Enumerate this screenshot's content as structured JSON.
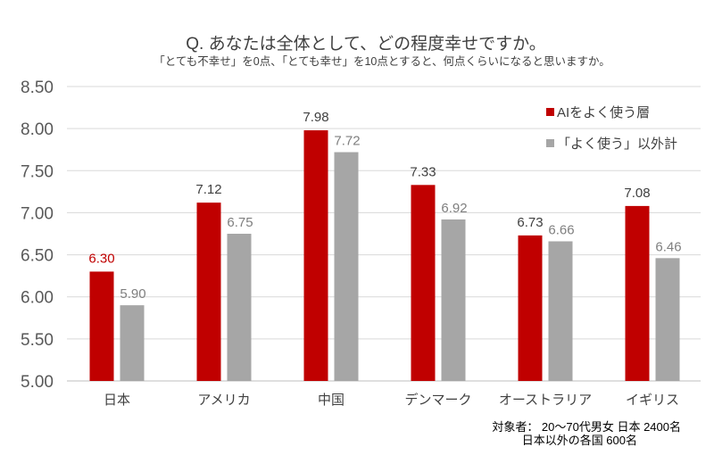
{
  "chart_data": {
    "type": "bar",
    "title": "Q. あなたは全体として、どの程度幸せですか。",
    "subtitle": "「とても不幸せ」を0点、「とても幸せ」を10点とすると、何点くらいになると思いますか。",
    "categories": [
      "日本",
      "アメリカ",
      "中国",
      "デンマーク",
      "オーストラリア",
      "イギリス"
    ],
    "series": [
      {
        "name": "AIをよく使う層",
        "color": "#c00000",
        "values": [
          6.3,
          7.12,
          7.98,
          7.33,
          6.73,
          7.08
        ]
      },
      {
        "name": "「よく使う」以外計",
        "color": "#a6a6a6",
        "values": [
          5.9,
          6.75,
          7.72,
          6.92,
          6.66,
          6.46
        ]
      }
    ],
    "value_labels": {
      "series0": [
        "6.30",
        "7.12",
        "7.98",
        "7.33",
        "6.73",
        "7.08"
      ],
      "series1": [
        "5.90",
        "6.75",
        "7.72",
        "6.92",
        "6.66",
        "6.46"
      ]
    },
    "ylim": [
      5.0,
      8.5
    ],
    "yticks": [
      "5.00",
      "5.50",
      "6.00",
      "6.50",
      "7.00",
      "7.50",
      "8.00",
      "8.50"
    ],
    "grid": true,
    "legend_position": "top-right",
    "xlabel": "",
    "ylabel": ""
  },
  "note": {
    "line1": "対象者：  20～70代男女  日本  2400名",
    "line2": "日本以外の各国  600名"
  },
  "colors": {
    "highlight_label": "#c00000",
    "dark_label": "#404040",
    "grey_label": "#7f7f7f",
    "grid": "#d9d9d9"
  }
}
